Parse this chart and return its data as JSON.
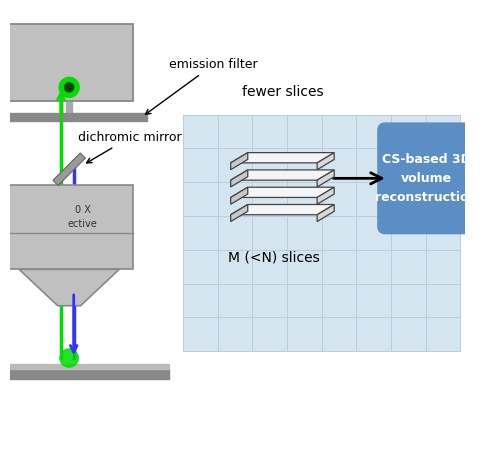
{
  "bg_color": "#ffffff",
  "microscope_color": "#c0c0c0",
  "microscope_dark": "#888888",
  "green_color": "#00dd00",
  "blue_color": "#3333ff",
  "box_color": "#5b8ec4",
  "box_text_color": "#ffffff",
  "box_text": "CS-based 3D\nvolume\nreconstruction",
  "emission_filter_label": "emission filter",
  "dichromic_mirror_label": "dichromic mirror",
  "fewer_slices_label": "fewer slices",
  "m_slices_label": "M (<N) slices",
  "grid_color": "#d5e5f0",
  "grid_line_color": "#b8cfe0",
  "slice_top_color": "#f5f5f5",
  "slice_side_color": "#d8d8d8",
  "slice_edge_color": "#444444"
}
